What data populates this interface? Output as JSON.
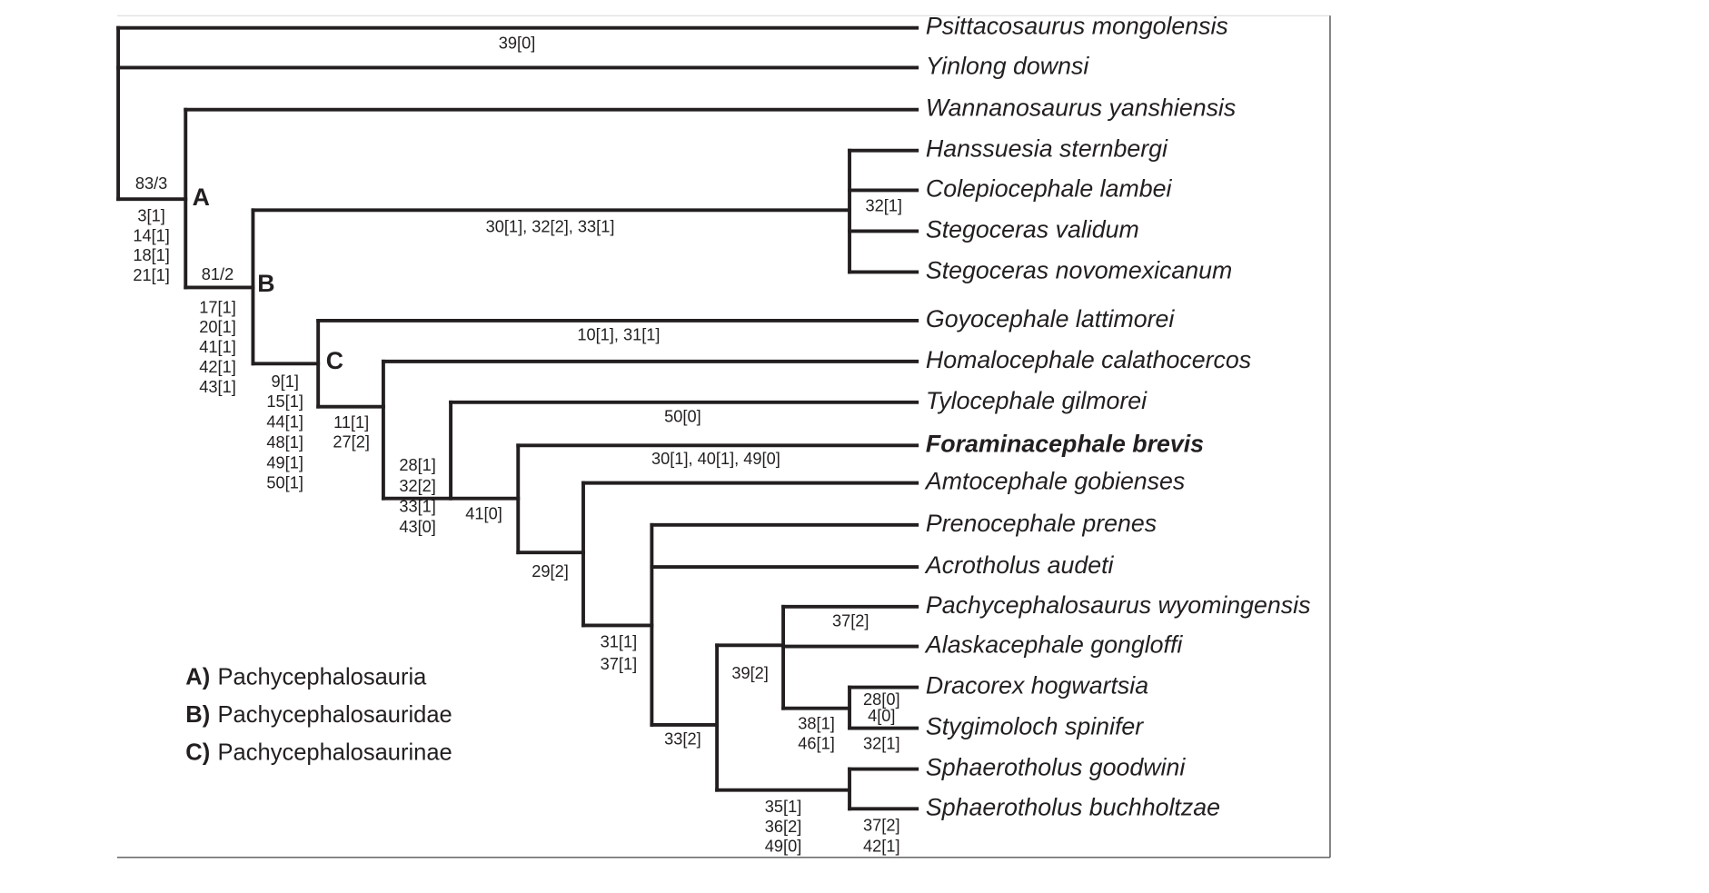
{
  "taxa": [
    "Psittacosaurus mongolensis",
    "Yinlong downsi",
    "Wannanosaurus yanshiensis",
    "Hanssuesia sternbergi",
    "Colepiocephale lambei",
    "Stegoceras validum",
    "Stegoceras novomexicanum",
    "Goyocephale lattimorei",
    "Homalocephale calathocercos",
    "Tylocephale gilmorei",
    "Foraminacephale brevis",
    "Amtocephale gobienses",
    "Prenocephale  prenes",
    "Acrotholus audeti",
    "Pachycephalosaurus wyomingensis",
    "Alaskacephale gongloffi",
    "Dracorex hogwartsia",
    "Stygimoloch spinifer",
    "Sphaerotholus  goodwini",
    "Sphaerotholus buchholtzae"
  ],
  "nodes": [
    "A",
    "B",
    "C"
  ],
  "characters": [
    [
      "39[0]"
    ],
    [
      "83/3"
    ],
    [
      "3[1]",
      "14[1]",
      "18[1]",
      "21[1]"
    ],
    [
      "81/2"
    ],
    [
      "17[1]",
      "20[1]",
      "41[1]",
      "42[1]",
      "43[1]"
    ],
    [
      "30[1], 32[2], 33[1]"
    ],
    [
      "32[1]"
    ],
    [
      "10[1], 31[1]"
    ],
    [
      "9[1]",
      "15[1]",
      "44[1]",
      "48[1]",
      "49[1]",
      "50[1]"
    ],
    [
      "11[1]",
      "27[2]"
    ],
    [
      "50[0]"
    ],
    [
      "28[1]",
      "32[2]",
      "33[1]",
      "43[0]"
    ],
    [
      "30[1], 40[1], 49[0]"
    ],
    [
      "41[0]"
    ],
    [
      "29[2]"
    ],
    [
      "31[1]",
      "37[1]"
    ],
    [
      "37[2]"
    ],
    [
      "39[2]"
    ],
    [
      "28[0]",
      "4[0]"
    ],
    [
      "38[1]",
      "46[1]"
    ],
    [
      "32[1]"
    ],
    [
      "33[2]"
    ],
    [
      "35[1]",
      "36[2]",
      "49[0]"
    ],
    [
      "37[2]",
      "42[1]"
    ]
  ],
  "legend": [
    {
      "key": "A)",
      "name": "Pachycephalosauria"
    },
    {
      "key": "B)",
      "name": "Pachycephalosauridae"
    },
    {
      "key": "C)",
      "name": "Pachycephalosaurinae"
    }
  ]
}
